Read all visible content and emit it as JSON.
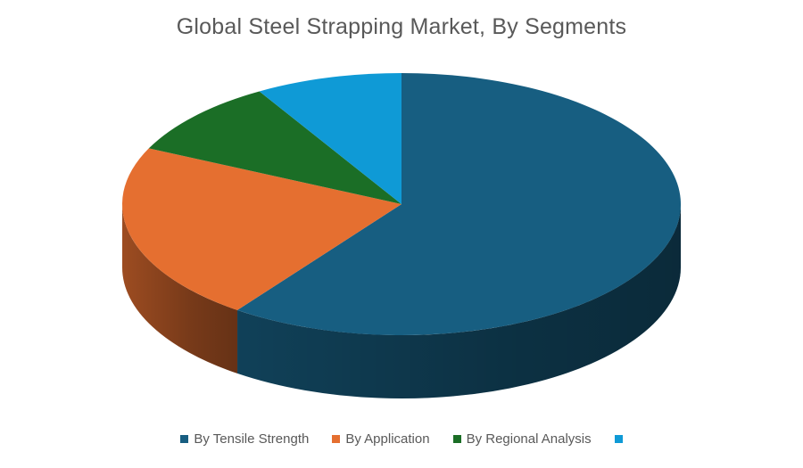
{
  "chart_data": {
    "type": "pie",
    "style": "3d",
    "title": "Global Steel Strapping Market, By Segments",
    "series": [
      {
        "name": "By Tensile Strength",
        "value": 60,
        "color": "#175E81"
      },
      {
        "name": "By Application",
        "value": 22,
        "color": "#E56F30"
      },
      {
        "name": "By Regional Analysis",
        "value": 9.5,
        "color": "#1B6E26"
      },
      {
        "name": "",
        "value": 8.5,
        "color": "#0F9AD6"
      }
    ],
    "legend_position": "bottom"
  }
}
